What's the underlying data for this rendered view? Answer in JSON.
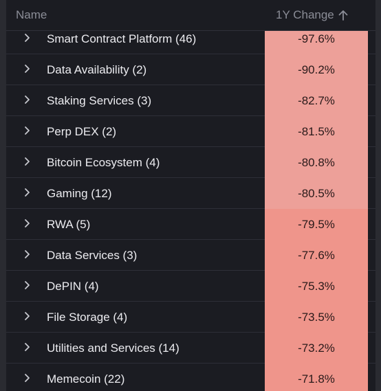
{
  "header": {
    "name_label": "Name",
    "change_label": "1Y Change",
    "sort_icon": "arrow-up-icon"
  },
  "colors": {
    "background": "#1b1c22",
    "text": "#ececf0",
    "header_text": "#8b8d97",
    "cell_light": "#eda099",
    "cell_dark": "#ef958b"
  },
  "rows": [
    {
      "label": "Smart Contract Platform (46)",
      "change": "-97.6%",
      "shade": "light"
    },
    {
      "label": "Data Availability (2)",
      "change": "-90.2%",
      "shade": "light"
    },
    {
      "label": "Staking Services (3)",
      "change": "-82.7%",
      "shade": "light"
    },
    {
      "label": "Perp DEX (2)",
      "change": "-81.5%",
      "shade": "light"
    },
    {
      "label": "Bitcoin Ecosystem (4)",
      "change": "-80.8%",
      "shade": "light"
    },
    {
      "label": "Gaming (12)",
      "change": "-80.5%",
      "shade": "light"
    },
    {
      "label": "RWA (5)",
      "change": "-79.5%",
      "shade": "dark"
    },
    {
      "label": "Data Services (3)",
      "change": "-77.6%",
      "shade": "dark"
    },
    {
      "label": "DePIN (4)",
      "change": "-75.3%",
      "shade": "dark"
    },
    {
      "label": "File Storage (4)",
      "change": "-73.5%",
      "shade": "dark"
    },
    {
      "label": "Utilities and Services (14)",
      "change": "-73.2%",
      "shade": "dark"
    },
    {
      "label": "Memecoin (22)",
      "change": "-71.8%",
      "shade": "dark"
    }
  ]
}
